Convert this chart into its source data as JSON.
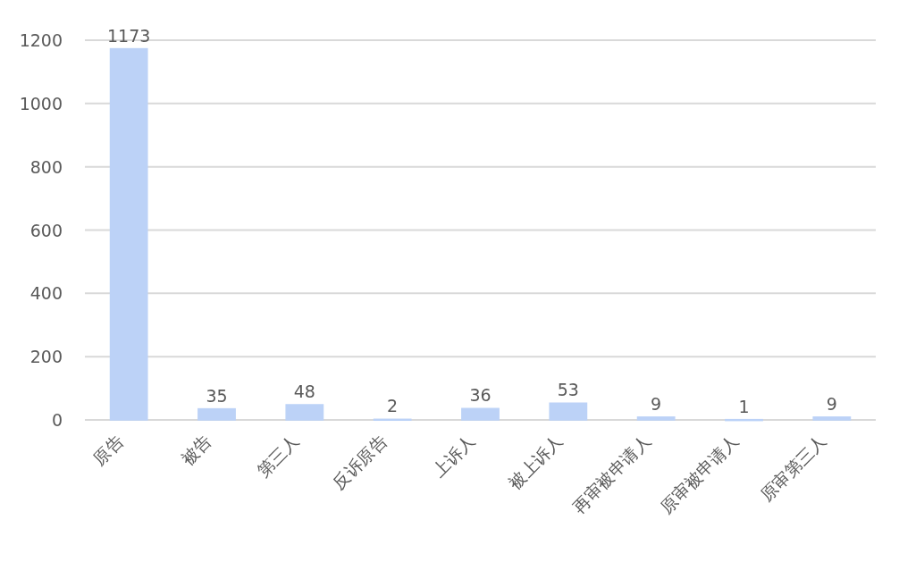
{
  "chart_data": {
    "type": "bar",
    "categories": [
      "原告",
      "被告",
      "第三人",
      "反诉原告",
      "上诉人",
      "被上诉人",
      "再审被申请人",
      "原审被申请人",
      "原审第三人"
    ],
    "values": [
      1173,
      35,
      48,
      2,
      36,
      53,
      9,
      1,
      9
    ],
    "color": "#bcd2f7",
    "ylim": [
      0,
      1200
    ],
    "yticks": [
      0,
      200,
      400,
      600,
      800,
      1000,
      1200
    ],
    "grid": "y",
    "data_labels": true
  }
}
